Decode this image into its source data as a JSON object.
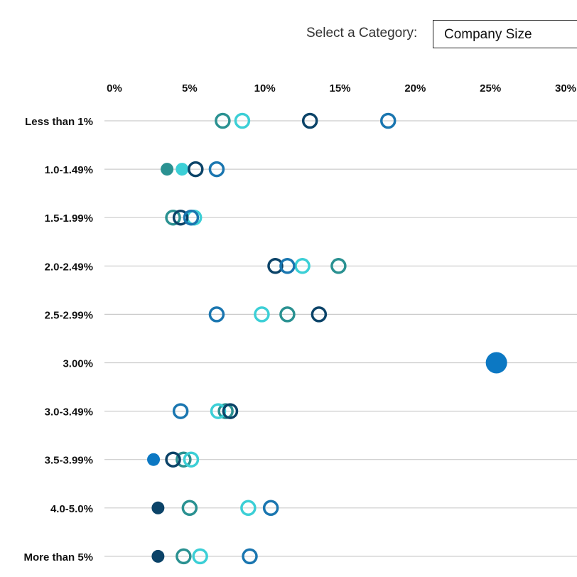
{
  "selector": {
    "label": "Select a Category:",
    "value": "Company Size"
  },
  "colors": {
    "teal": "#2a9191",
    "cyan": "#3ccfd6",
    "navy": "#0b4368",
    "blue": "#1a76b0",
    "bright_blue": "#0c78c3",
    "gridline": "#cccccc"
  },
  "chart_data": {
    "type": "scatter",
    "xlim": [
      0,
      30
    ],
    "x_ticks": [
      "0%",
      "5%",
      "10%",
      "15%",
      "20%",
      "25%",
      "30%"
    ],
    "x_tick_values": [
      0,
      5,
      10,
      15,
      20,
      25,
      30
    ],
    "categories": [
      "Less than 1%",
      "1.0-1.49%",
      "1.5-1.99%",
      "2.0-2.49%",
      "2.5-2.99%",
      "3.00%",
      "3.0-3.49%",
      "3.5-3.99%",
      "4.0-5.0%",
      "More than 5%"
    ],
    "points": [
      {
        "category": "Less than 1%",
        "x": 7.2,
        "color": "#2a9191",
        "filled": false,
        "large": false
      },
      {
        "category": "Less than 1%",
        "x": 8.5,
        "color": "#3ccfd6",
        "filled": false,
        "large": false
      },
      {
        "category": "Less than 1%",
        "x": 13.0,
        "color": "#0b4368",
        "filled": false,
        "large": false
      },
      {
        "category": "Less than 1%",
        "x": 18.2,
        "color": "#1a76b0",
        "filled": false,
        "large": false
      },
      {
        "category": "1.0-1.49%",
        "x": 3.5,
        "color": "#2a9191",
        "filled": true,
        "large": false
      },
      {
        "category": "1.0-1.49%",
        "x": 4.5,
        "color": "#3ccfd6",
        "filled": true,
        "large": false
      },
      {
        "category": "1.0-1.49%",
        "x": 5.4,
        "color": "#0b4368",
        "filled": false,
        "large": false
      },
      {
        "category": "1.0-1.49%",
        "x": 6.8,
        "color": "#1a76b0",
        "filled": false,
        "large": false
      },
      {
        "category": "1.5-1.99%",
        "x": 3.9,
        "color": "#2a9191",
        "filled": false,
        "large": false
      },
      {
        "category": "1.5-1.99%",
        "x": 5.3,
        "color": "#3ccfd6",
        "filled": false,
        "large": false
      },
      {
        "category": "1.5-1.99%",
        "x": 4.4,
        "color": "#0b4368",
        "filled": false,
        "large": false
      },
      {
        "category": "1.5-1.99%",
        "x": 5.1,
        "color": "#1a76b0",
        "filled": false,
        "large": false
      },
      {
        "category": "2.0-2.49%",
        "x": 14.9,
        "color": "#2a9191",
        "filled": false,
        "large": false
      },
      {
        "category": "2.0-2.49%",
        "x": 12.5,
        "color": "#3ccfd6",
        "filled": false,
        "large": false
      },
      {
        "category": "2.0-2.49%",
        "x": 10.7,
        "color": "#0b4368",
        "filled": false,
        "large": false
      },
      {
        "category": "2.0-2.49%",
        "x": 11.5,
        "color": "#1a76b0",
        "filled": false,
        "large": false
      },
      {
        "category": "2.5-2.99%",
        "x": 11.5,
        "color": "#2a9191",
        "filled": false,
        "large": false
      },
      {
        "category": "2.5-2.99%",
        "x": 9.8,
        "color": "#3ccfd6",
        "filled": false,
        "large": false
      },
      {
        "category": "2.5-2.99%",
        "x": 13.6,
        "color": "#0b4368",
        "filled": false,
        "large": false
      },
      {
        "category": "2.5-2.99%",
        "x": 6.8,
        "color": "#1a76b0",
        "filled": false,
        "large": false
      },
      {
        "category": "3.00%",
        "x": 25.4,
        "color": "#0c78c3",
        "filled": true,
        "large": true
      },
      {
        "category": "3.0-3.49%",
        "x": 7.4,
        "color": "#2a9191",
        "filled": false,
        "large": false
      },
      {
        "category": "3.0-3.49%",
        "x": 6.9,
        "color": "#3ccfd6",
        "filled": false,
        "large": false
      },
      {
        "category": "3.0-3.49%",
        "x": 7.7,
        "color": "#0b4368",
        "filled": false,
        "large": false
      },
      {
        "category": "3.0-3.49%",
        "x": 4.4,
        "color": "#1a76b0",
        "filled": false,
        "large": false
      },
      {
        "category": "3.5-3.99%",
        "x": 4.6,
        "color": "#2a9191",
        "filled": false,
        "large": false
      },
      {
        "category": "3.5-3.99%",
        "x": 5.1,
        "color": "#3ccfd6",
        "filled": false,
        "large": false
      },
      {
        "category": "3.5-3.99%",
        "x": 3.9,
        "color": "#0b4368",
        "filled": false,
        "large": false
      },
      {
        "category": "3.5-3.99%",
        "x": 2.6,
        "color": "#0c78c3",
        "filled": true,
        "large": false
      },
      {
        "category": "4.0-5.0%",
        "x": 5.0,
        "color": "#2a9191",
        "filled": false,
        "large": false
      },
      {
        "category": "4.0-5.0%",
        "x": 8.9,
        "color": "#3ccfd6",
        "filled": false,
        "large": false
      },
      {
        "category": "4.0-5.0%",
        "x": 2.9,
        "color": "#0b4368",
        "filled": true,
        "large": false
      },
      {
        "category": "4.0-5.0%",
        "x": 10.4,
        "color": "#1a76b0",
        "filled": false,
        "large": false
      },
      {
        "category": "More than 5%",
        "x": 4.6,
        "color": "#2a9191",
        "filled": false,
        "large": false
      },
      {
        "category": "More than 5%",
        "x": 5.7,
        "color": "#3ccfd6",
        "filled": false,
        "large": false
      },
      {
        "category": "More than 5%",
        "x": 2.9,
        "color": "#0b4368",
        "filled": true,
        "large": false
      },
      {
        "category": "More than 5%",
        "x": 9.0,
        "color": "#1a76b0",
        "filled": false,
        "large": false
      }
    ],
    "grid": true,
    "legend": "none"
  }
}
